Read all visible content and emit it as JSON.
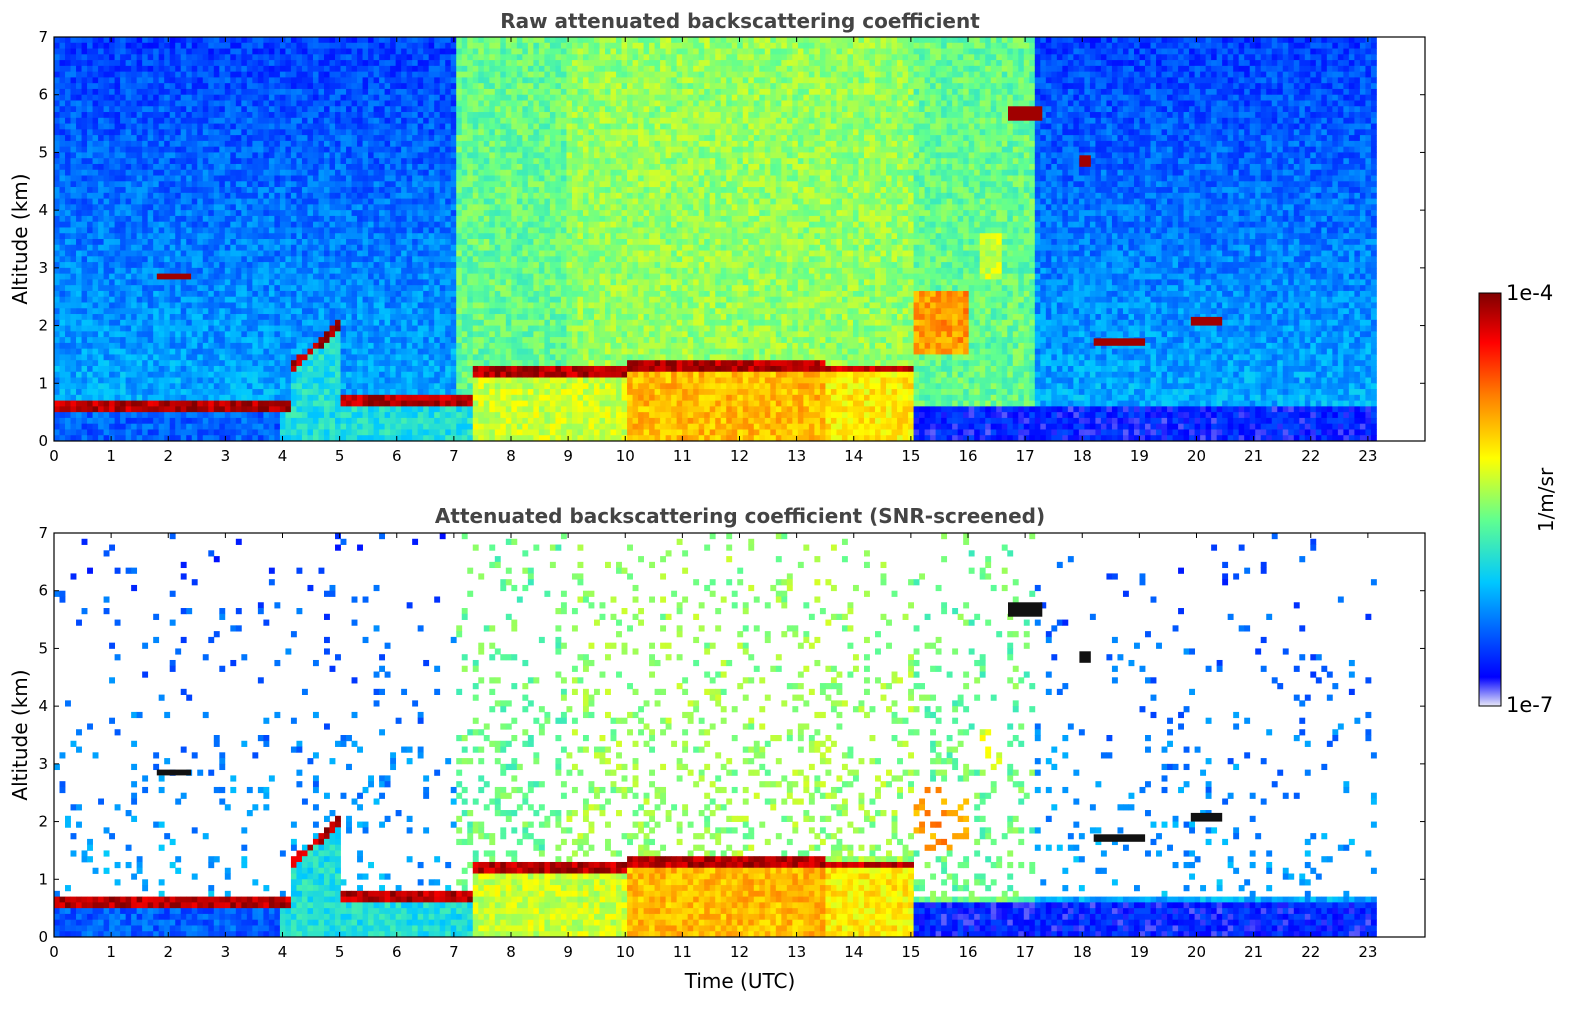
{
  "chart_data": [
    {
      "type": "heatmap",
      "title": "Raw attenuated backscattering coefficient",
      "xlabel": "",
      "ylabel": "Altitude (km)",
      "xlim": [
        0,
        24
      ],
      "ylim": [
        0,
        7
      ],
      "xticks": [
        "0",
        "1",
        "2",
        "3",
        "4",
        "5",
        "6",
        "7",
        "8",
        "9",
        "10",
        "11",
        "12",
        "13",
        "14",
        "15",
        "16",
        "17",
        "18",
        "19",
        "20",
        "21",
        "22",
        "23"
      ],
      "yticks": [
        "0",
        "1",
        "2",
        "3",
        "4",
        "5",
        "6",
        "7"
      ],
      "data_end_time": 23.15,
      "features": [
        {
          "kind": "boundary_layer_top",
          "time": [
            0,
            4.1
          ],
          "altitude": [
            0.55,
            0.62
          ]
        },
        {
          "kind": "aerosol_plume",
          "time": [
            4.1,
            5.6
          ],
          "altitude": [
            1.2,
            2.1
          ]
        },
        {
          "kind": "cloud",
          "time": [
            1.8,
            2.4
          ],
          "altitude": [
            2.8,
            2.9
          ]
        },
        {
          "kind": "boundary_layer_top",
          "time": [
            5.5,
            7.2
          ],
          "altitude": [
            0.55,
            0.75
          ]
        },
        {
          "kind": "convective_layer",
          "time": [
            7.3,
            15.0
          ],
          "altitude": [
            0.5,
            1.7
          ]
        },
        {
          "kind": "aerosol_plume",
          "time": [
            15.0,
            16.0
          ],
          "altitude": [
            1.5,
            2.6
          ]
        },
        {
          "kind": "aerosol_plume",
          "time": [
            16.2,
            16.6
          ],
          "altitude": [
            2.8,
            3.6
          ]
        },
        {
          "kind": "cloud",
          "time": [
            16.7,
            17.3
          ],
          "altitude": [
            5.55,
            5.8
          ]
        },
        {
          "kind": "cloud",
          "time": [
            17.95,
            18.15
          ],
          "altitude": [
            4.75,
            4.95
          ]
        },
        {
          "kind": "cloud",
          "time": [
            18.2,
            19.1
          ],
          "altitude": [
            1.65,
            1.78
          ]
        },
        {
          "kind": "cloud",
          "time": [
            19.9,
            20.45
          ],
          "altitude": [
            2.0,
            2.15
          ]
        }
      ]
    },
    {
      "type": "heatmap",
      "title": "Attenuated backscattering coefficient (SNR-screened)",
      "xlabel": "Time (UTC)",
      "ylabel": "Altitude (km)",
      "xlim": [
        0,
        24
      ],
      "ylim": [
        0,
        7
      ],
      "xticks": [
        "0",
        "1",
        "2",
        "3",
        "4",
        "5",
        "6",
        "7",
        "8",
        "9",
        "10",
        "11",
        "12",
        "13",
        "14",
        "15",
        "16",
        "17",
        "18",
        "19",
        "20",
        "21",
        "22",
        "23"
      ],
      "yticks": [
        "0",
        "1",
        "2",
        "3",
        "4",
        "5",
        "6",
        "7"
      ],
      "data_end_time": 23.15
    }
  ],
  "colorbar": {
    "label": "1/m/sr",
    "max_label": "1e-4",
    "min_label": "1e-7",
    "scale": "log",
    "colormap": "jet",
    "colors": [
      "#e8e8f8",
      "#0000ff",
      "#00c8ff",
      "#60ff90",
      "#ffff00",
      "#ff8000",
      "#ff0000",
      "#800000"
    ]
  }
}
